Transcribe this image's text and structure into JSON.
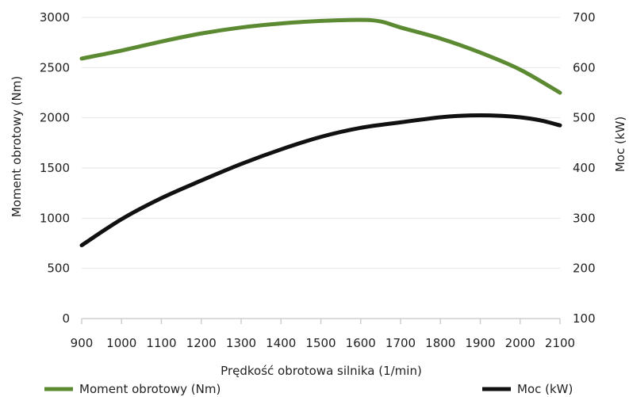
{
  "colors": {
    "torque": "#5b8a32",
    "power": "#111111",
    "grid": "#e4e4e4",
    "axis": "#cfcfcf",
    "text": "#222222"
  },
  "chart_data": {
    "type": "line",
    "title": "",
    "xlabel": "Prędkość obrotowa silnika (1/min)",
    "ylabel_left": "Moment obrotowy (Nm)",
    "ylabel_right": "Moc (kW)",
    "xlim": [
      900,
      2100
    ],
    "ylim_left": [
      0,
      3000
    ],
    "ylim_right": [
      100,
      700
    ],
    "x_ticks": [
      900,
      1000,
      1100,
      1200,
      1300,
      1400,
      1500,
      1600,
      1700,
      1800,
      1900,
      2000,
      2100
    ],
    "y_ticks_left": [
      0,
      500,
      1000,
      1500,
      2000,
      2500,
      3000
    ],
    "y_ticks_right": [
      100,
      200,
      300,
      400,
      500,
      600,
      700
    ],
    "grid": "horizontal",
    "legend_position": "bottom",
    "series": [
      {
        "name": "Moment obrotowy (Nm)",
        "axis": "left",
        "color": "#5b8a32",
        "x": [
          900,
          1000,
          1100,
          1200,
          1300,
          1400,
          1500,
          1600,
          1650,
          1700,
          1800,
          1900,
          2000,
          2100
        ],
        "y": [
          2590,
          2670,
          2760,
          2840,
          2900,
          2940,
          2965,
          2975,
          2960,
          2900,
          2790,
          2650,
          2480,
          2250
        ]
      },
      {
        "name": "Moc (kW)",
        "axis": "right",
        "color": "#111111",
        "x": [
          900,
          1000,
          1100,
          1200,
          1300,
          1400,
          1500,
          1600,
          1700,
          1800,
          1850,
          1900,
          1950,
          2000,
          2050,
          2100
        ],
        "y": [
          246,
          298,
          340,
          375,
          408,
          437,
          462,
          480,
          491,
          501,
          504,
          505,
          504,
          501,
          495,
          485
        ]
      }
    ]
  }
}
